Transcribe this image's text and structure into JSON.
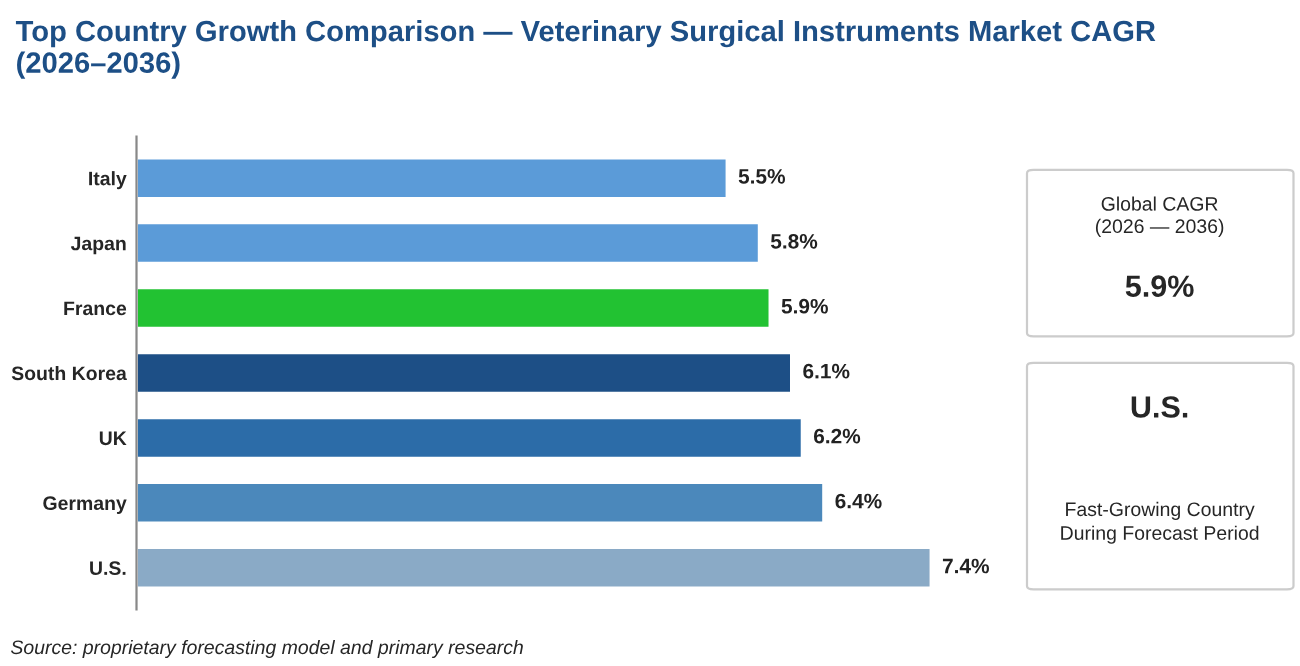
{
  "chart_data": {
    "type": "bar",
    "orientation": "horizontal",
    "title": "Top Country Growth Comparison — Veterinary Surgical Instruments Market CAGR (2026–2036)",
    "categories": [
      "Italy",
      "Japan",
      "France",
      "South Korea",
      "UK",
      "Germany",
      "U.S."
    ],
    "values": [
      5.5,
      5.8,
      5.9,
      6.1,
      6.2,
      6.4,
      7.4
    ],
    "colors": [
      "#5b9bd8",
      "#5b9bd8",
      "#22c232",
      "#1d4f86",
      "#2c6ca8",
      "#4b88bb",
      "#8aaac6"
    ],
    "value_labels": [
      "5.5%",
      "5.8%",
      "5.9%",
      "6.1%",
      "6.2%",
      "6.4%",
      "7.4%"
    ],
    "grid": false,
    "legend": false,
    "annotations": [
      "Source: proprietary forecasting model and primary research",
      "Global CAGR\n(2026 — 2036)",
      "5.9%",
      "U.S.",
      "Fast-Growing Country\nDuring Forecast Period"
    ]
  }
}
